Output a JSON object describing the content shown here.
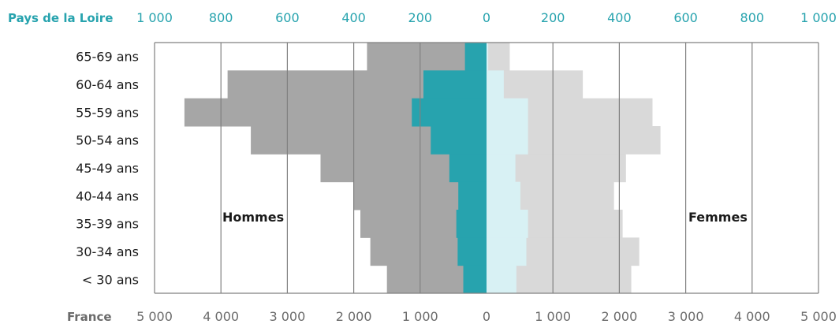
{
  "chart_data": {
    "type": "bar",
    "subtype": "population-pyramid",
    "categories": [
      "65-69 ans",
      "60-64 ans",
      "55-59 ans",
      "50-54 ans",
      "45-49 ans",
      "40-44 ans",
      "35-39 ans",
      "30-34 ans",
      "< 30 ans"
    ],
    "top_axis": {
      "label": "Pays de la Loire",
      "ticks": [
        "1 000",
        "800",
        "600",
        "400",
        "200",
        "0",
        "200",
        "400",
        "600",
        "800",
        "1 000"
      ],
      "range": [
        0,
        1000
      ]
    },
    "bottom_axis": {
      "label": "France",
      "ticks": [
        "5 000",
        "4 000",
        "3 000",
        "2 000",
        "1 000",
        "0",
        "1 000",
        "2 000",
        "3 000",
        "4 000",
        "5 000"
      ],
      "range": [
        0,
        5000
      ]
    },
    "side_labels": {
      "left": "Hommes",
      "right": "Femmes"
    },
    "series": [
      {
        "name": "France",
        "side": "left",
        "axis": "bottom",
        "color": "#a6a6a6",
        "values": [
          1800,
          3900,
          4550,
          3550,
          2500,
          2000,
          1900,
          1750,
          1500
        ]
      },
      {
        "name": "Pays de la Loire",
        "side": "left",
        "axis": "top",
        "color": "#27a3ae",
        "values": [
          65,
          190,
          225,
          168,
          112,
          85,
          91,
          87,
          70
        ]
      },
      {
        "name": "France",
        "side": "right",
        "axis": "bottom",
        "color": "#d9d9d9",
        "values": [
          350,
          1450,
          2500,
          2620,
          2100,
          1920,
          2050,
          2300,
          2180
        ]
      },
      {
        "name": "Pays de la Loire",
        "side": "right",
        "axis": "top",
        "color": "#d8f1f4",
        "values": [
          5,
          52,
          125,
          125,
          87,
          102,
          125,
          120,
          90
        ]
      }
    ],
    "grid": true,
    "gridline_color": "#808080"
  }
}
